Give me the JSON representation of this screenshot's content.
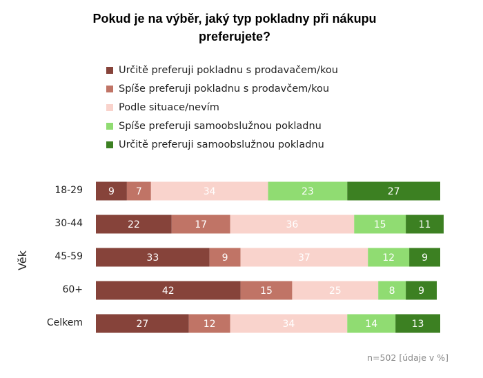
{
  "chart_data": {
    "type": "bar",
    "orientation": "horizontal",
    "stacked": true,
    "title": "Pokud je na výběr, jaký typ pokladny při nákupu preferujete?",
    "title_lines": [
      "Pokud je na výběr, jaký typ pokladny při nákupu",
      "preferujete?"
    ],
    "ylabel": "Věk",
    "xlabel": "",
    "xlim": [
      0,
      100
    ],
    "grid": false,
    "legend_position": "top",
    "note": "n=502 [údaje v %]",
    "categories": [
      "18-29",
      "30-44",
      "45-59",
      "60+",
      "Celkem"
    ],
    "series": [
      {
        "name": "Určitě preferuji pokladnu s prodavačem/kou",
        "color": "#86433A",
        "values": [
          9,
          22,
          33,
          42,
          27
        ]
      },
      {
        "name": "Spíše preferuji pokladnu s prodavčem/kou",
        "color": "#C07466",
        "values": [
          7,
          17,
          9,
          15,
          12
        ]
      },
      {
        "name": "Podle situace/nevím",
        "color": "#F9D3CC",
        "values": [
          34,
          36,
          37,
          25,
          34
        ]
      },
      {
        "name": "Spíše preferuji samoobslužnou pokladnu",
        "color": "#90DC72",
        "values": [
          23,
          15,
          12,
          8,
          14
        ]
      },
      {
        "name": "Určitě preferuji samoobslužnou pokladnu",
        "color": "#3C8022",
        "values": [
          27,
          11,
          9,
          9,
          13
        ]
      }
    ]
  }
}
